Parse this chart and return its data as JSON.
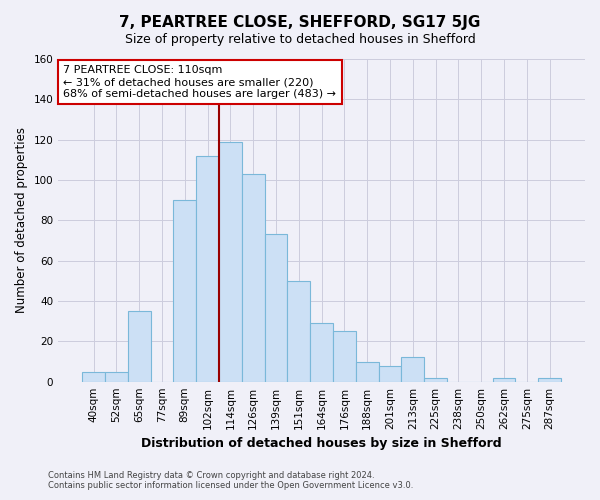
{
  "title": "7, PEARTREE CLOSE, SHEFFORD, SG17 5JG",
  "subtitle": "Size of property relative to detached houses in Shefford",
  "xlabel": "Distribution of detached houses by size in Shefford",
  "ylabel": "Number of detached properties",
  "bar_labels": [
    "40sqm",
    "52sqm",
    "65sqm",
    "77sqm",
    "89sqm",
    "102sqm",
    "114sqm",
    "126sqm",
    "139sqm",
    "151sqm",
    "164sqm",
    "176sqm",
    "188sqm",
    "201sqm",
    "213sqm",
    "225sqm",
    "238sqm",
    "250sqm",
    "262sqm",
    "275sqm",
    "287sqm"
  ],
  "bar_values": [
    5,
    5,
    35,
    0,
    90,
    112,
    119,
    103,
    73,
    50,
    29,
    25,
    10,
    8,
    12,
    2,
    0,
    0,
    2,
    0,
    2
  ],
  "bar_color": "#cce0f5",
  "bar_edge_color": "#7ab8d9",
  "vline_x_index": 5.5,
  "annotation_title": "7 PEARTREE CLOSE: 110sqm",
  "annotation_line1": "← 31% of detached houses are smaller (220)",
  "annotation_line2": "68% of semi-detached houses are larger (483) →",
  "annotation_box_facecolor": "#ffffff",
  "annotation_box_edgecolor": "#cc0000",
  "vline_color": "#990000",
  "ylim": [
    0,
    160
  ],
  "yticks": [
    0,
    20,
    40,
    60,
    80,
    100,
    120,
    140,
    160
  ],
  "footer1": "Contains HM Land Registry data © Crown copyright and database right 2024.",
  "footer2": "Contains public sector information licensed under the Open Government Licence v3.0.",
  "bg_color": "#f0f0f8",
  "plot_bg_color": "#f0f0f8",
  "grid_color": "#ccccdd"
}
